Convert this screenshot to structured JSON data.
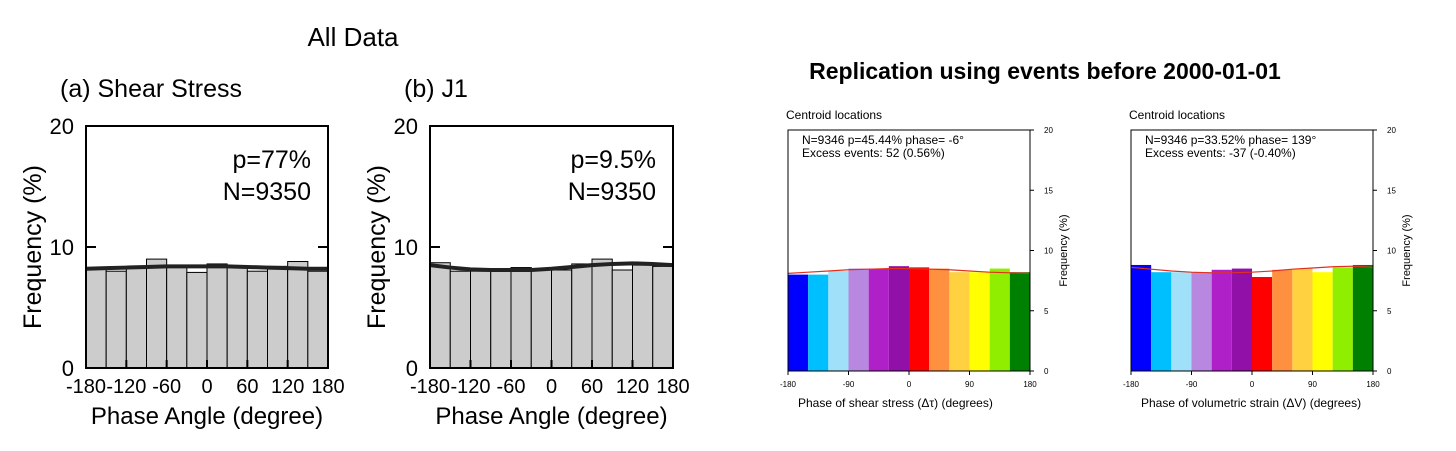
{
  "left_group": {
    "title": "All Data"
  },
  "right_group": {
    "title": "Replication using events before 2000-01-01"
  },
  "chart_data": [
    {
      "type": "bar",
      "panel_title": "(a) Shear Stress",
      "xlabel": "Phase Angle (degree)",
      "ylabel": "Frequency (%)",
      "xlim": [
        -180,
        180
      ],
      "ylim": [
        0,
        20
      ],
      "xticks": [
        "-180",
        "-120",
        "-60",
        "0",
        "60",
        "120",
        "180"
      ],
      "yticks": [
        "0",
        "10",
        "20"
      ],
      "annotations": [
        "p=77%",
        "N=9350"
      ],
      "bin_edges": [
        -180,
        -150,
        -120,
        -90,
        -60,
        -30,
        0,
        30,
        60,
        90,
        120,
        150,
        180
      ],
      "values": [
        8.3,
        8.0,
        8.3,
        9.0,
        8.5,
        7.9,
        8.6,
        8.3,
        8.0,
        8.4,
        8.8,
        8.0
      ],
      "fit_curve": {
        "x": [
          -180,
          -150,
          -120,
          -90,
          -60,
          -30,
          0,
          30,
          60,
          90,
          120,
          150,
          180
        ],
        "y": [
          8.2,
          8.25,
          8.3,
          8.35,
          8.4,
          8.4,
          8.4,
          8.4,
          8.35,
          8.3,
          8.25,
          8.2,
          8.2
        ]
      },
      "bar_color": "#cccccc"
    },
    {
      "type": "bar",
      "panel_title": "(b) J1",
      "xlabel": "Phase Angle (degree)",
      "ylabel": "Frequency (%)",
      "xlim": [
        -180,
        180
      ],
      "ylim": [
        0,
        20
      ],
      "xticks": [
        "-180",
        "-120",
        "-60",
        "0",
        "60",
        "120",
        "180"
      ],
      "yticks": [
        "0",
        "10",
        "20"
      ],
      "annotations": [
        "p=9.5%",
        "N=9350"
      ],
      "bin_edges": [
        -180,
        -150,
        -120,
        -90,
        -60,
        -30,
        0,
        30,
        60,
        90,
        120,
        150,
        180
      ],
      "values": [
        8.7,
        8.0,
        8.0,
        8.0,
        8.3,
        8.1,
        8.1,
        8.6,
        9.0,
        8.1,
        8.5,
        8.4
      ],
      "fit_curve": {
        "x": [
          -180,
          -150,
          -120,
          -90,
          -60,
          -30,
          0,
          30,
          60,
          90,
          120,
          150,
          180
        ],
        "y": [
          8.5,
          8.3,
          8.15,
          8.1,
          8.1,
          8.1,
          8.2,
          8.35,
          8.5,
          8.6,
          8.65,
          8.6,
          8.5
        ]
      },
      "bar_color": "#cccccc"
    },
    {
      "type": "bar",
      "panel_title": "Centroid locations",
      "xlabel": "Phase of shear stress (Δτ) (degrees)",
      "ylabel": "Frequency (%)",
      "xlim": [
        -180,
        180
      ],
      "ylim": [
        0,
        20
      ],
      "xticks": [
        "-180",
        "-90",
        "0",
        "90",
        "180"
      ],
      "yticks": [
        "0",
        "5",
        "10",
        "15",
        "20"
      ],
      "annotations": [
        "N=9346   p=45.44%   phase= -6°",
        "Excess events: 52 (0.56%)"
      ],
      "bin_edges": [
        -180,
        -150,
        -120,
        -90,
        -60,
        -30,
        0,
        30,
        60,
        90,
        120,
        150,
        180
      ],
      "values": [
        8.0,
        8.0,
        8.3,
        8.5,
        8.5,
        8.7,
        8.6,
        8.5,
        8.2,
        8.2,
        8.5,
        8.2
      ],
      "fit_curve": {
        "x": [
          -180,
          -150,
          -120,
          -90,
          -60,
          -30,
          0,
          30,
          60,
          90,
          120,
          150,
          180
        ],
        "y": [
          8.1,
          8.2,
          8.3,
          8.4,
          8.45,
          8.5,
          8.5,
          8.45,
          8.4,
          8.3,
          8.2,
          8.15,
          8.1
        ]
      },
      "bar_colors": [
        "#0000ff",
        "#00bfff",
        "#a0e0f8",
        "#b888e0",
        "#b020c8",
        "#9010a8",
        "#ff0000",
        "#ff9040",
        "#ffd040",
        "#ffff00",
        "#90ee00",
        "#008000"
      ],
      "fit_color": "#e03020"
    },
    {
      "type": "bar",
      "panel_title": "Centroid locations",
      "xlabel": "Phase of volumetric strain (ΔV) (degrees)",
      "ylabel": "Frequency (%)",
      "xlim": [
        -180,
        180
      ],
      "ylim": [
        0,
        20
      ],
      "xticks": [
        "-180",
        "-90",
        "0",
        "90",
        "180"
      ],
      "yticks": [
        "0",
        "5",
        "10",
        "15",
        "20"
      ],
      "annotations": [
        "N=9346   p=33.52%   phase= 139°",
        "Excess events: -37 (-0.40%)"
      ],
      "bin_edges": [
        -180,
        -150,
        -120,
        -90,
        -60,
        -30,
        0,
        30,
        60,
        90,
        120,
        150,
        180
      ],
      "values": [
        8.8,
        8.2,
        8.2,
        8.2,
        8.4,
        8.5,
        7.8,
        8.4,
        8.5,
        8.2,
        8.6,
        8.8
      ],
      "fit_curve": {
        "x": [
          -180,
          -150,
          -120,
          -90,
          -60,
          -30,
          0,
          30,
          60,
          90,
          120,
          150,
          180
        ],
        "y": [
          8.6,
          8.45,
          8.3,
          8.2,
          8.15,
          8.15,
          8.2,
          8.3,
          8.45,
          8.55,
          8.65,
          8.7,
          8.6
        ]
      },
      "bar_colors": [
        "#0000ff",
        "#00bfff",
        "#a0e0f8",
        "#b888e0",
        "#b020c8",
        "#9010a8",
        "#ff0000",
        "#ff9040",
        "#ffd040",
        "#ffff00",
        "#90ee00",
        "#008000"
      ],
      "fit_color": "#e03020"
    }
  ]
}
